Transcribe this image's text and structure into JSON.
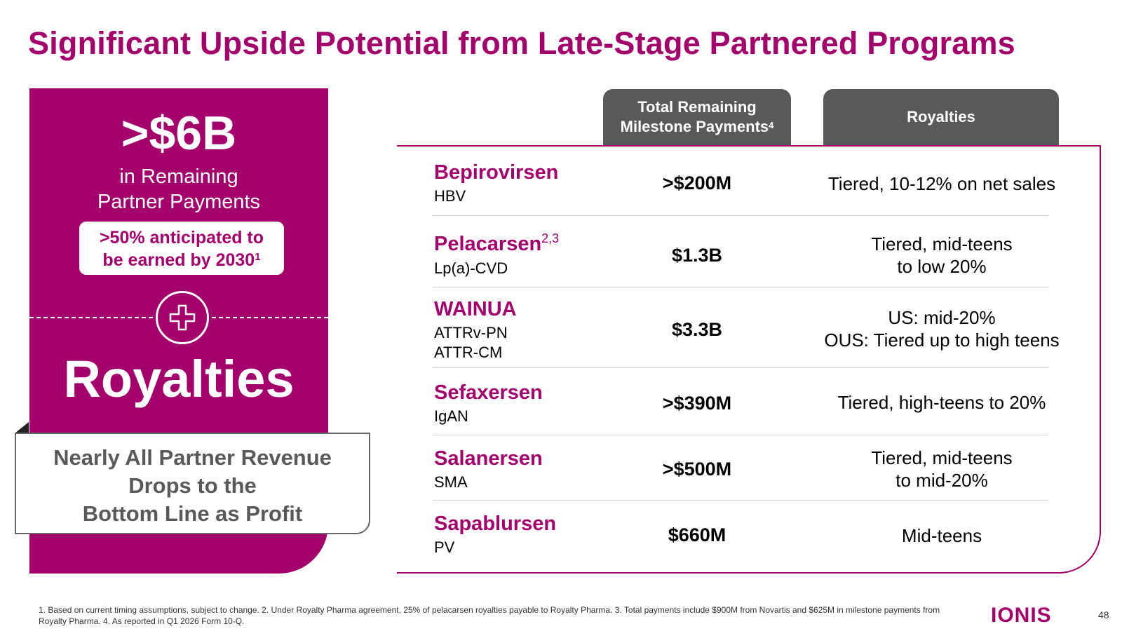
{
  "slide": {
    "title": "Significant Upside Potential from Late-Stage Partnered Programs",
    "page_number": "48"
  },
  "left_panel": {
    "amount": ">$6B",
    "amount_caption_line1": "in Remaining",
    "amount_caption_line2": "Partner Payments",
    "pill_line1": ">50% anticipated to",
    "pill_line2": "be earned by 2030",
    "pill_footnote": "1",
    "royalties_label": "Royalties",
    "profit_line1": "Nearly All Partner Revenue",
    "profit_line2": "Drops to the",
    "profit_line3": "Bottom Line as Profit",
    "colors": {
      "brand": "#a3006b",
      "header_gray": "#58595b"
    },
    "icon": "plus-cross-icon"
  },
  "table": {
    "header_milestone": "Total Remaining Milestone Payments",
    "header_milestone_footnote": "4",
    "header_royalties": "Royalties",
    "rows": [
      {
        "drug": "Bepirovirsen",
        "drug_footnote": "",
        "indication": "HBV",
        "milestone": ">$200M",
        "royalty": "Tiered, 10-12% on net sales"
      },
      {
        "drug": "Pelacarsen",
        "drug_footnote": "2,3",
        "indication": "Lp(a)-CVD",
        "milestone": "$1.3B",
        "royalty": "Tiered, mid-teens\nto low 20%"
      },
      {
        "drug": "WAINUA",
        "drug_footnote": "",
        "indication": "ATTRv-PN\nATTR-CM",
        "milestone": "$3.3B",
        "royalty": "US: mid-20%\nOUS: Tiered up to high teens"
      },
      {
        "drug": "Sefaxersen",
        "drug_footnote": "",
        "indication": "IgAN",
        "milestone": ">$390M",
        "royalty": "Tiered, high-teens to 20%"
      },
      {
        "drug": "Salanersen",
        "drug_footnote": "",
        "indication": "SMA",
        "milestone": ">$500M",
        "royalty": "Tiered, mid-teens\nto mid-20%"
      },
      {
        "drug": "Sapablursen",
        "drug_footnote": "",
        "indication": "PV",
        "milestone": "$660M",
        "royalty": "Mid-teens"
      }
    ]
  },
  "footer": {
    "footnote": "1. Based on current timing assumptions, subject to change. 2. Under Royalty Pharma agreement, 25% of pelacarsen royalties payable to Royalty Pharma. 3. Total payments include $900M from Novartis and $625M in milestone payments from Royalty Pharma. 4. As reported in Q1 2026 Form 10-Q.",
    "logo": "IONIS"
  }
}
